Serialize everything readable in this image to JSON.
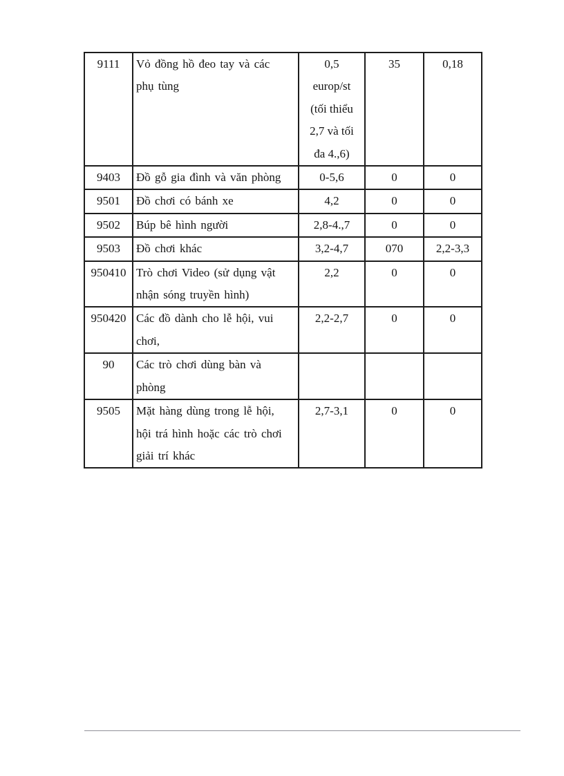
{
  "page": {
    "background": "#ffffff",
    "type": "scanned-document-page"
  },
  "table": {
    "border_color": "#1c1c1c",
    "columns": [
      "code",
      "description",
      "rate1",
      "rate2",
      "rate3"
    ],
    "rows": [
      {
        "code": "9111",
        "description": "Vỏ đồng hồ đeo tay và các\nphụ tùng",
        "rate1": "0,5\neurop/st\n(tối thiểu\n2,7 và tối\nđa 4.,6)",
        "rate2": "35",
        "rate3": "0,18"
      },
      {
        "code": "9403",
        "description": "Đồ gỗ gia đình và văn phòng",
        "rate1": "0-5,6",
        "rate2": "0",
        "rate3": "0"
      },
      {
        "code": "9501",
        "description": "Đồ chơi có bánh xe",
        "rate1": "4,2",
        "rate2": "0",
        "rate3": "0"
      },
      {
        "code": "9502",
        "description": "Búp bê hình người",
        "rate1": "2,8-4.,7",
        "rate2": "0",
        "rate3": "0"
      },
      {
        "code": "9503",
        "description": "Đồ chơi khác",
        "rate1": "3,2-4,7",
        "rate2": "070",
        "rate3": "2,2-3,3"
      },
      {
        "code": "950410",
        "description": "Trò chơi Video (sử dụng vật\nnhận sóng truyền hình)",
        "rate1": "2,2",
        "rate2": "0",
        "rate3": "0"
      },
      {
        "code": "950420",
        "description": "Các đồ dành cho lễ hội, vui\nchơi,",
        "rate1": "2,2-2,7",
        "rate2": "0",
        "rate3": "0"
      },
      {
        "code": "90",
        "description": "Các trò chơi dùng bàn và\nphòng",
        "rate1": "",
        "rate2": "",
        "rate3": ""
      },
      {
        "code": "9505",
        "description": "Mặt hàng dùng trong lễ hội,\nhội trá hình hoặc các trò chơi\ngiải trí khác",
        "rate1": "2,7-3,1",
        "rate2": "0",
        "rate3": "0"
      }
    ]
  },
  "footer": {
    "divider_color": "#8f8f97"
  }
}
